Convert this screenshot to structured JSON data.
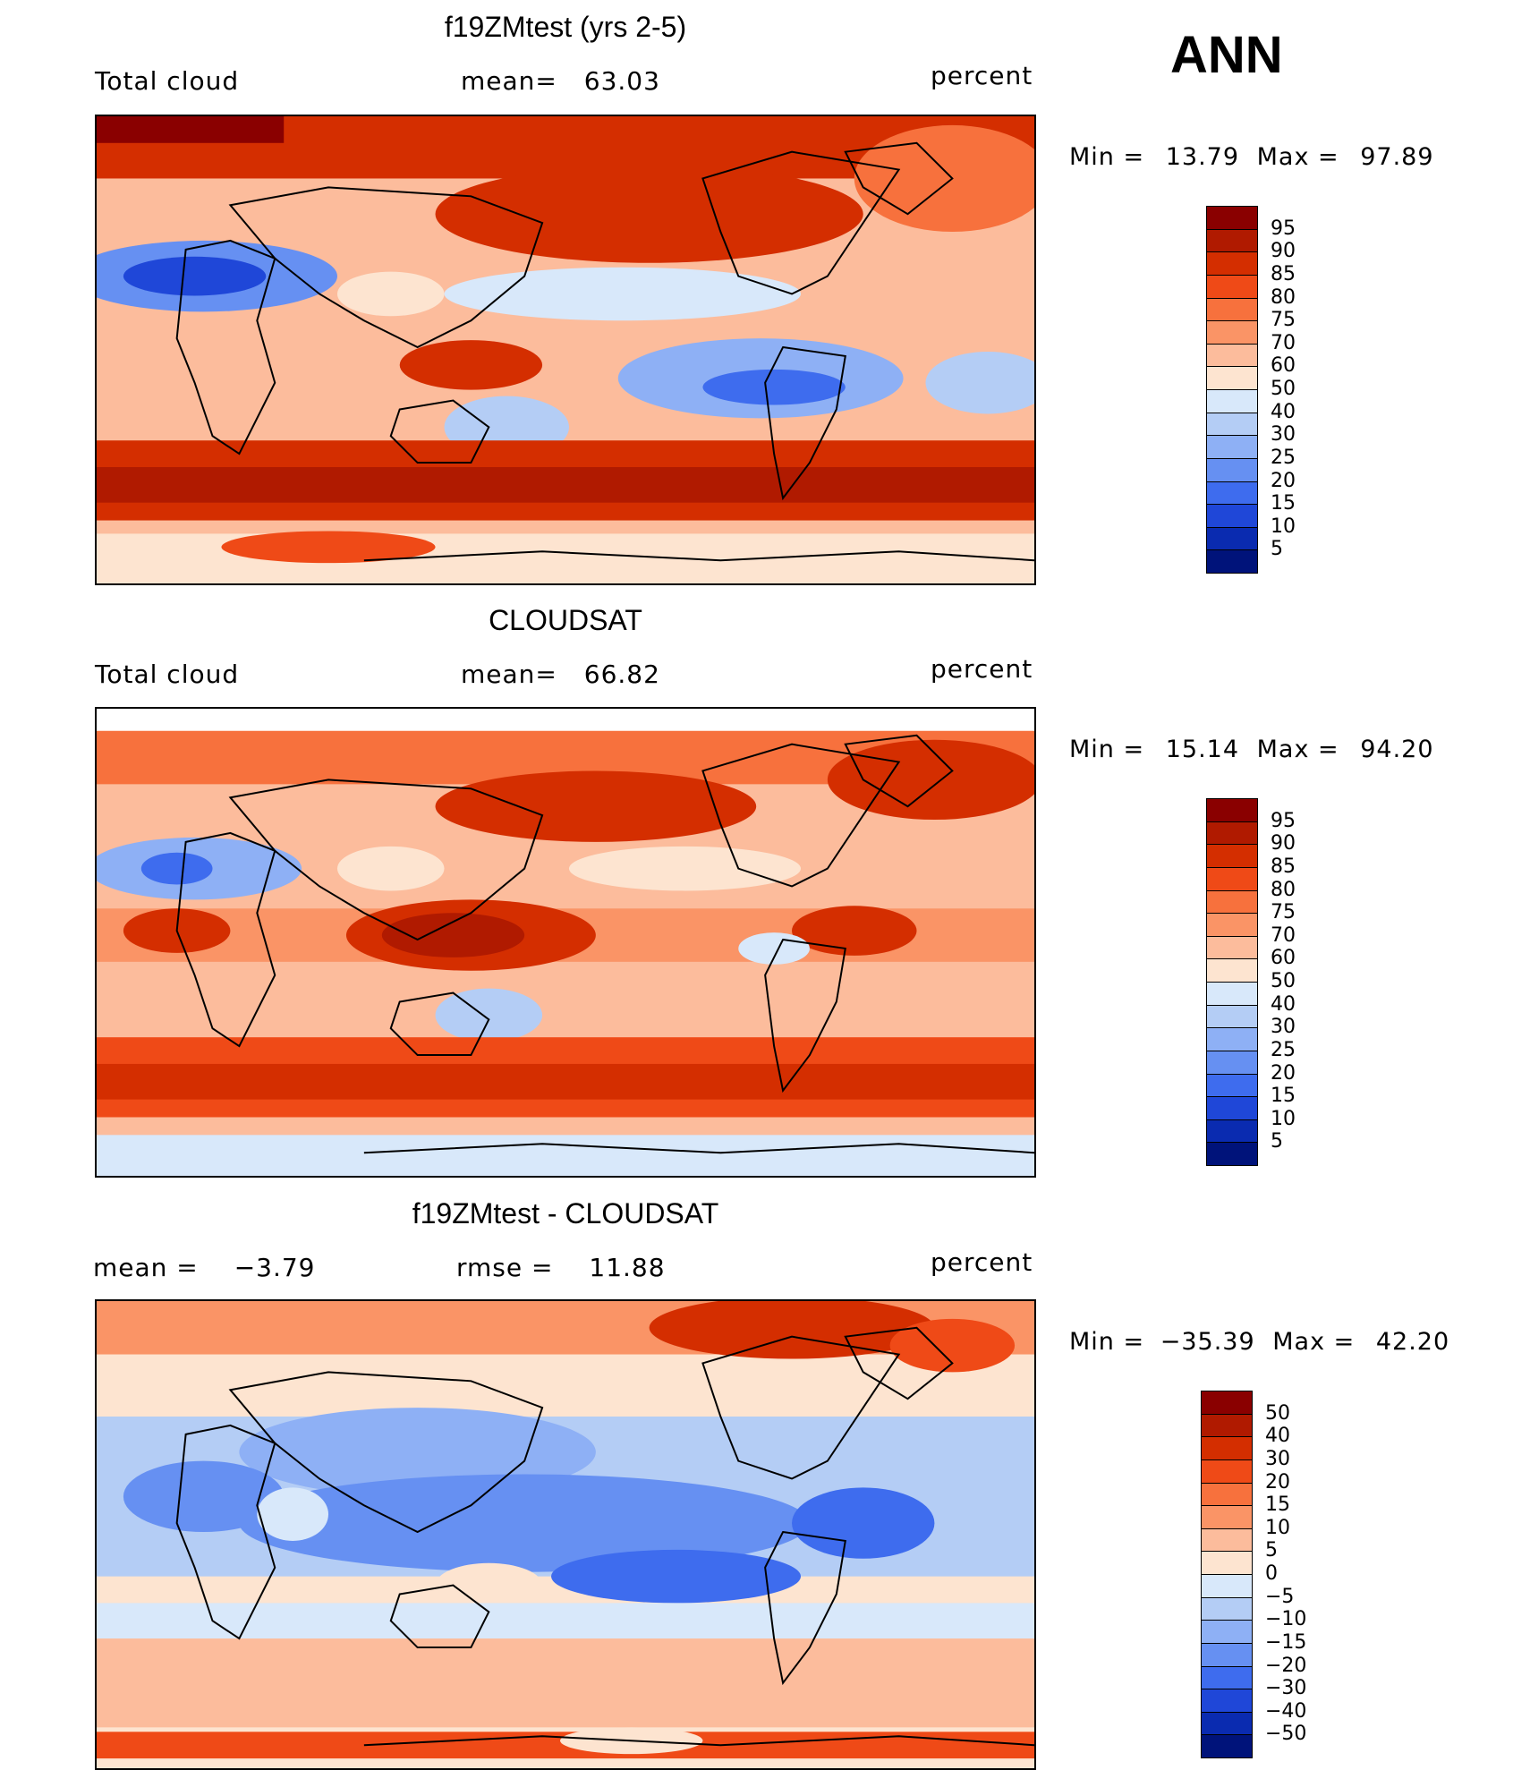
{
  "season": "ANN",
  "panels": [
    {
      "title": "f19ZMtest (yrs 2-5)",
      "left_label": "Total cloud",
      "center_label": "mean=",
      "center_value": "63.03",
      "units": "percent",
      "stats": {
        "min_label": "Min =",
        "min": "13.79",
        "max_label": "Max =",
        "max": "97.89"
      },
      "legend_levels": [
        "95",
        "90",
        "85",
        "80",
        "75",
        "70",
        "60",
        "50",
        "40",
        "30",
        "25",
        "20",
        "15",
        "10",
        "5"
      ],
      "legend_colors": [
        "#8a0000",
        "#b01a00",
        "#d42e00",
        "#ef4a17",
        "#f7713d",
        "#fa9466",
        "#fcbc9c",
        "#fde4d0",
        "#d8e8fa",
        "#b4cdf5",
        "#8eb0f5",
        "#6690f2",
        "#3e6cee",
        "#1f47d8",
        "#0a2bb0",
        "#00137a"
      ]
    },
    {
      "title": "CLOUDSAT",
      "left_label": "Total cloud",
      "center_label": "mean=",
      "center_value": "66.82",
      "units": "percent",
      "stats": {
        "min_label": "Min =",
        "min": "15.14",
        "max_label": "Max =",
        "max": "94.20"
      },
      "legend_levels": [
        "95",
        "90",
        "85",
        "80",
        "75",
        "70",
        "60",
        "50",
        "40",
        "30",
        "25",
        "20",
        "15",
        "10",
        "5"
      ],
      "legend_colors": [
        "#8a0000",
        "#b01a00",
        "#d42e00",
        "#ef4a17",
        "#f7713d",
        "#fa9466",
        "#fcbc9c",
        "#fde4d0",
        "#d8e8fa",
        "#b4cdf5",
        "#8eb0f5",
        "#6690f2",
        "#3e6cee",
        "#1f47d8",
        "#0a2bb0",
        "#00137a"
      ]
    },
    {
      "title": "f19ZMtest - CLOUDSAT",
      "left_label": "mean =",
      "left_value": "−3.79",
      "center_label": "rmse =",
      "center_value": "11.88",
      "units": "percent",
      "stats": {
        "min_label": "Min =",
        "min": "−35.39",
        "max_label": "Max =",
        "max": "42.20"
      },
      "legend_levels": [
        "50",
        "40",
        "30",
        "20",
        "15",
        "10",
        "5",
        "0",
        "−5",
        "−10",
        "−15",
        "−20",
        "−30",
        "−40",
        "−50"
      ],
      "legend_colors": [
        "#8a0000",
        "#b01a00",
        "#d42e00",
        "#ef4a17",
        "#f7713d",
        "#fa9466",
        "#fcbc9c",
        "#fde4d0",
        "#d8e8fa",
        "#b4cdf5",
        "#8eb0f5",
        "#6690f2",
        "#3e6cee",
        "#1f47d8",
        "#0a2bb0",
        "#00137a"
      ]
    }
  ]
}
